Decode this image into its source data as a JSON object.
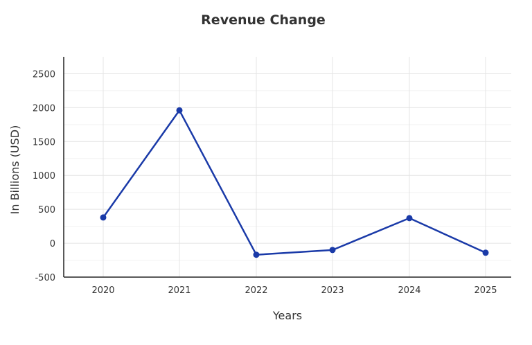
{
  "chart_data": {
    "type": "line",
    "title": "Revenue Change",
    "xlabel": "Years",
    "ylabel": "In Billions (USD)",
    "categories": [
      "2020",
      "2021",
      "2022",
      "2023",
      "2024",
      "2025"
    ],
    "series": [
      {
        "values": [
          380,
          1960,
          -170,
          -100,
          370,
          -140
        ]
      }
    ],
    "ylim": [
      -500,
      2750
    ],
    "yticks": [
      -500,
      0,
      500,
      1000,
      1500,
      2000,
      2500
    ],
    "ytick_labels": [
      "-500",
      "0",
      "500",
      "1000",
      "1500",
      "2000",
      "2500"
    ],
    "grid": true,
    "line_color": "#1a3aa8"
  }
}
